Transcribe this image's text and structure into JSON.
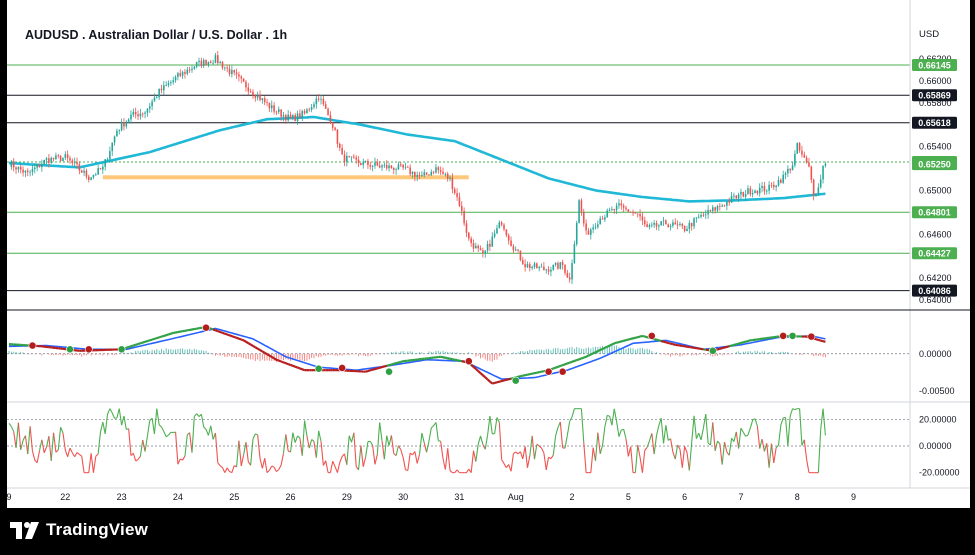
{
  "attribution": "TimothyFigueroa created with TradingView.com, Aug 08, 2025 07:38 UTC+8",
  "logo_text": "TradingView",
  "colors": {
    "up": "#26a69a",
    "down": "#ef5350",
    "ma": "#1fb8d6",
    "level_green": "#4caf50",
    "level_black": "#131722",
    "support_zone": "#ffc77a",
    "macd_fast": "#2ea043",
    "macd_slow": "#2962ff",
    "macd_bear": "#b71c1c",
    "osc_up": "#4caf50",
    "osc_down": "#ef5350"
  },
  "chart_data": [
    {
      "type": "candlestick",
      "title": "AUDUSD . Australian Dollar / U.S. Dollar . 1h",
      "currency": "USD",
      "ylim": [
        0.64,
        0.663
      ],
      "y_ticks": [
        "0.66200",
        "0.66000",
        "0.65800",
        "0.65400",
        "0.65000",
        "0.64600",
        "0.64200",
        "0.64000"
      ],
      "y_tick_values": [
        0.662,
        0.66,
        0.658,
        0.654,
        0.65,
        0.646,
        0.642,
        0.64
      ],
      "x_labels": [
        "9",
        "22",
        "23",
        "24",
        "25",
        "26",
        "29",
        "30",
        "31",
        "Aug",
        "2",
        "5",
        "6",
        "7",
        "8",
        "9"
      ],
      "x_label_index": [
        0,
        24,
        48,
        72,
        96,
        120,
        144,
        168,
        192,
        216,
        240,
        264,
        288,
        312,
        336,
        360
      ],
      "bars_count": 348,
      "price_anchors": [
        [
          0,
          0.6525
        ],
        [
          8,
          0.6515
        ],
        [
          16,
          0.6528
        ],
        [
          24,
          0.653
        ],
        [
          34,
          0.6512
        ],
        [
          40,
          0.652
        ],
        [
          46,
          0.6555
        ],
        [
          52,
          0.6568
        ],
        [
          58,
          0.6572
        ],
        [
          64,
          0.659
        ],
        [
          72,
          0.6604
        ],
        [
          80,
          0.6615
        ],
        [
          88,
          0.662
        ],
        [
          96,
          0.6605
        ],
        [
          104,
          0.659
        ],
        [
          112,
          0.6575
        ],
        [
          120,
          0.6565
        ],
        [
          126,
          0.657
        ],
        [
          132,
          0.6586
        ],
        [
          138,
          0.656
        ],
        [
          142,
          0.653
        ],
        [
          150,
          0.6525
        ],
        [
          158,
          0.6522
        ],
        [
          168,
          0.652
        ],
        [
          176,
          0.6512
        ],
        [
          182,
          0.652
        ],
        [
          188,
          0.651
        ],
        [
          192,
          0.6488
        ],
        [
          196,
          0.6455
        ],
        [
          202,
          0.644
        ],
        [
          210,
          0.6472
        ],
        [
          214,
          0.6452
        ],
        [
          220,
          0.6432
        ],
        [
          228,
          0.6428
        ],
        [
          236,
          0.6432
        ],
        [
          239,
          0.6418
        ],
        [
          243,
          0.649
        ],
        [
          246,
          0.646
        ],
        [
          252,
          0.6475
        ],
        [
          260,
          0.6485
        ],
        [
          268,
          0.6478
        ],
        [
          272,
          0.6465
        ],
        [
          280,
          0.647
        ],
        [
          288,
          0.6465
        ],
        [
          294,
          0.6475
        ],
        [
          300,
          0.6482
        ],
        [
          308,
          0.6492
        ],
        [
          316,
          0.65
        ],
        [
          324,
          0.6502
        ],
        [
          330,
          0.6512
        ],
        [
          334,
          0.6524
        ],
        [
          336,
          0.654
        ],
        [
          338,
          0.6532
        ],
        [
          341,
          0.652
        ],
        [
          343,
          0.6498
        ],
        [
          345,
          0.6502
        ],
        [
          347,
          0.6522
        ],
        [
          348,
          0.6526
        ]
      ],
      "moving_average": [
        [
          0,
          0.6525
        ],
        [
          30,
          0.6521
        ],
        [
          60,
          0.6535
        ],
        [
          90,
          0.6555
        ],
        [
          110,
          0.6565
        ],
        [
          130,
          0.6567
        ],
        [
          150,
          0.656
        ],
        [
          170,
          0.6551
        ],
        [
          190,
          0.6545
        ],
        [
          210,
          0.6528
        ],
        [
          230,
          0.6511
        ],
        [
          250,
          0.65
        ],
        [
          270,
          0.6494
        ],
        [
          290,
          0.649
        ],
        [
          310,
          0.6491
        ],
        [
          330,
          0.6493
        ],
        [
          348,
          0.6497
        ]
      ],
      "levels": [
        {
          "value": 0.66145,
          "label": "0.66145",
          "style": "green"
        },
        {
          "value": 0.65869,
          "label": "0.65869",
          "style": "black"
        },
        {
          "value": 0.65618,
          "label": "0.65618",
          "style": "black"
        },
        {
          "value": 0.6526,
          "label": "0.65260",
          "style": "green",
          "dotted": true
        },
        {
          "value": 0.64801,
          "label": "0.64801",
          "style": "green"
        },
        {
          "value": 0.64427,
          "label": "0.64427",
          "style": "green"
        },
        {
          "value": 0.64086,
          "label": "0.64086",
          "style": "black"
        }
      ],
      "last_price_label": "0.65250",
      "support_zone": {
        "from_index": 40,
        "to_index": 196,
        "value": 0.6512
      }
    },
    {
      "type": "line",
      "name": "macd-panel",
      "y_ticks": [
        "0.00000",
        "-0.00500"
      ],
      "y_tick_values": [
        0.0,
        -0.005
      ],
      "ylim": [
        -0.0062,
        0.0048
      ],
      "fast_anchors": [
        [
          0,
          0.0013
        ],
        [
          14,
          0.001
        ],
        [
          30,
          0.0004
        ],
        [
          48,
          0.0006
        ],
        [
          70,
          0.0028
        ],
        [
          84,
          0.0036
        ],
        [
          100,
          0.0018
        ],
        [
          114,
          -0.0008
        ],
        [
          126,
          -0.0022
        ],
        [
          140,
          -0.0022
        ],
        [
          152,
          -0.0024
        ],
        [
          168,
          -0.001
        ],
        [
          184,
          -0.0004
        ],
        [
          196,
          -0.0012
        ],
        [
          206,
          -0.004
        ],
        [
          218,
          -0.003
        ],
        [
          230,
          -0.0022
        ],
        [
          246,
          -0.0004
        ],
        [
          258,
          0.0014
        ],
        [
          270,
          0.0024
        ],
        [
          284,
          0.0012
        ],
        [
          300,
          0.0004
        ],
        [
          316,
          0.0018
        ],
        [
          330,
          0.0024
        ],
        [
          340,
          0.0023
        ],
        [
          348,
          0.0016
        ]
      ],
      "slow_anchors": [
        [
          0,
          0.001
        ],
        [
          16,
          0.0011
        ],
        [
          34,
          0.0006
        ],
        [
          50,
          0.0006
        ],
        [
          72,
          0.0022
        ],
        [
          88,
          0.0034
        ],
        [
          104,
          0.002
        ],
        [
          118,
          -0.0004
        ],
        [
          132,
          -0.0018
        ],
        [
          148,
          -0.0022
        ],
        [
          162,
          -0.0016
        ],
        [
          178,
          -0.0008
        ],
        [
          194,
          -0.001
        ],
        [
          210,
          -0.0034
        ],
        [
          224,
          -0.0032
        ],
        [
          238,
          -0.0022
        ],
        [
          252,
          -0.0006
        ],
        [
          266,
          0.0014
        ],
        [
          280,
          0.0018
        ],
        [
          296,
          0.0006
        ],
        [
          312,
          0.0012
        ],
        [
          328,
          0.0022
        ],
        [
          342,
          0.0024
        ],
        [
          348,
          0.002
        ]
      ],
      "cross_markers": [
        {
          "index": 10,
          "value": 0.0011,
          "kind": "bear"
        },
        {
          "index": 26,
          "value": 0.0006,
          "kind": "bull"
        },
        {
          "index": 34,
          "value": 0.0006,
          "kind": "bear"
        },
        {
          "index": 48,
          "value": 0.0006,
          "kind": "bull"
        },
        {
          "index": 84,
          "value": 0.0035,
          "kind": "bear"
        },
        {
          "index": 132,
          "value": -0.002,
          "kind": "bull"
        },
        {
          "index": 142,
          "value": -0.0019,
          "kind": "bear"
        },
        {
          "index": 162,
          "value": -0.0024,
          "kind": "bull"
        },
        {
          "index": 196,
          "value": -0.001,
          "kind": "bear"
        },
        {
          "index": 216,
          "value": -0.0036,
          "kind": "bull"
        },
        {
          "index": 230,
          "value": -0.0024,
          "kind": "bear"
        },
        {
          "index": 236,
          "value": -0.0024,
          "kind": "bear"
        },
        {
          "index": 274,
          "value": 0.0024,
          "kind": "bear"
        },
        {
          "index": 300,
          "value": 0.0004,
          "kind": "bull"
        },
        {
          "index": 330,
          "value": 0.0024,
          "kind": "bear"
        },
        {
          "index": 334,
          "value": 0.0024,
          "kind": "bull"
        },
        {
          "index": 342,
          "value": 0.0023,
          "kind": "bear"
        }
      ]
    },
    {
      "type": "line",
      "name": "oscillator-panel",
      "y_ticks": [
        "20.00000",
        "0.00000",
        "-20.00000"
      ],
      "y_tick_values": [
        20,
        0,
        -20
      ],
      "ylim": [
        -30,
        30
      ],
      "level_lines": [
        20,
        0
      ],
      "range": [
        -20,
        28
      ]
    }
  ]
}
